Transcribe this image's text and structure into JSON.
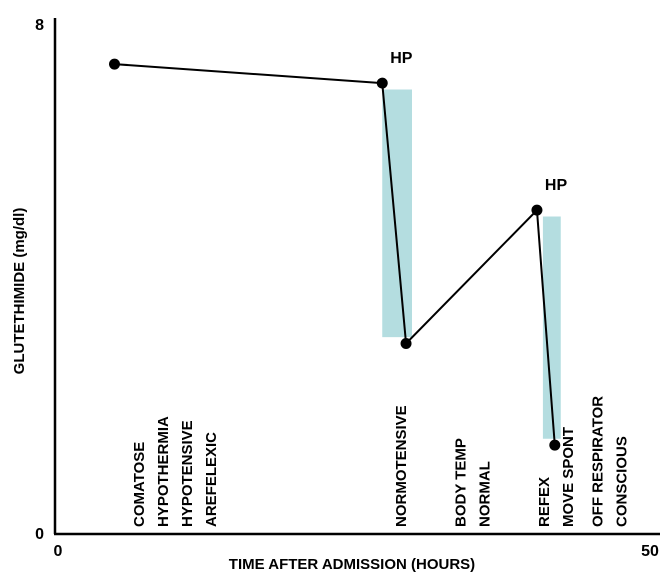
{
  "chart_data": {
    "type": "line",
    "title": "",
    "xlabel": "TIME AFTER ADMISSION (HOURS)",
    "ylabel": "GLUTETHIMIDE (mg/dl)",
    "xlim": [
      0,
      50
    ],
    "ylim": [
      0,
      8
    ],
    "x_ticks": [
      "0",
      "50"
    ],
    "y_ticks": [
      "0",
      "8"
    ],
    "grid": false,
    "series": [
      {
        "points": [
          {
            "x": 5,
            "y": 7.4
          },
          {
            "x": 27.5,
            "y": 7.1
          },
          {
            "x": 29.5,
            "y": 3.0
          },
          {
            "x": 40.5,
            "y": 5.1
          },
          {
            "x": 42,
            "y": 1.4
          }
        ],
        "color": "#000000"
      }
    ],
    "shaded_bands": [
      {
        "x_start": 27.5,
        "x_end": 30,
        "y_top": 7.0,
        "y_bottom": 3.1,
        "color": "#b4dde0"
      },
      {
        "x_start": 41,
        "x_end": 42.5,
        "y_top": 5.0,
        "y_bottom": 1.5,
        "color": "#b4dde0"
      }
    ],
    "point_annotations": [
      {
        "text": "HP",
        "x": 28,
        "y": 7.1
      },
      {
        "text": "HP",
        "x": 41,
        "y": 5.1
      }
    ],
    "vertical_annotations": [
      {
        "lines": [
          "COMATOSE",
          "HYPOTHERMIA",
          "HYPOTENSIVE",
          "AREFELEXIC"
        ],
        "x": 10
      },
      {
        "lines": [
          "NORMOTENSIVE"
        ],
        "x": 29
      },
      {
        "lines": [
          "BODY TEMP",
          "NORMAL"
        ],
        "x": 35
      },
      {
        "lines": [
          "REFEX",
          "MOVE SPONT"
        ],
        "x": 42
      },
      {
        "lines": [
          "OFF RESPIRATOR",
          "CONSCIOUS"
        ],
        "x": 46.5
      }
    ]
  }
}
